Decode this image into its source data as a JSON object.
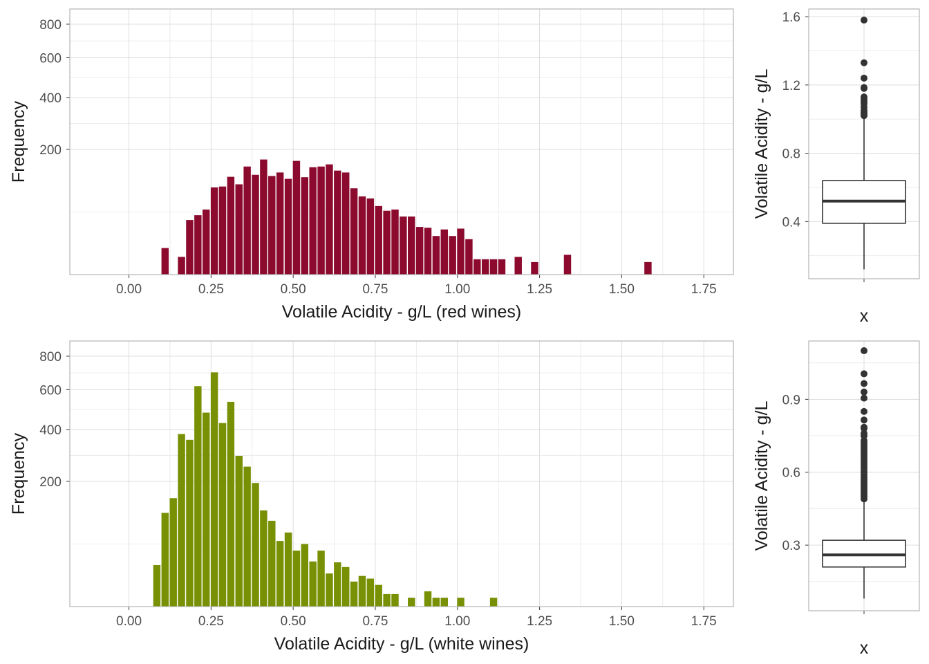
{
  "colors": {
    "red_bar": "#8b0a2e",
    "white_bar": "#789104",
    "box": "#333333",
    "grid_major": "#dcdcdc",
    "grid_minor": "#ececec",
    "panel_border": "#b3b3b3",
    "tick_text": "#4d4d4d",
    "title_text": "#1a1a1a"
  },
  "chart_data": [
    {
      "type": "bar",
      "id": "red-histogram",
      "title": "",
      "xlabel": "Volatile Acidity - g/L (red wines)",
      "ylabel": "Frequency",
      "xlim": [
        -0.18,
        1.84
      ],
      "ylim": [
        0,
        900
      ],
      "yscale": "sqrt",
      "xticks": [
        0.0,
        0.25,
        0.5,
        0.75,
        1.0,
        1.25,
        1.5,
        1.75
      ],
      "xtick_labels": [
        "0.00",
        "0.25",
        "0.50",
        "0.75",
        "1.00",
        "1.25",
        "1.50",
        "1.75"
      ],
      "yticks": [
        200,
        400,
        600,
        800
      ],
      "ytick_labels": [
        "200",
        "400",
        "600",
        "800"
      ],
      "bin_width": 0.025,
      "grid": true,
      "x": [
        0.11,
        0.16,
        0.185,
        0.21,
        0.235,
        0.26,
        0.285,
        0.31,
        0.335,
        0.36,
        0.385,
        0.41,
        0.435,
        0.46,
        0.485,
        0.51,
        0.535,
        0.56,
        0.585,
        0.61,
        0.635,
        0.66,
        0.685,
        0.71,
        0.735,
        0.76,
        0.785,
        0.81,
        0.835,
        0.86,
        0.885,
        0.91,
        0.935,
        0.96,
        0.985,
        1.01,
        1.035,
        1.06,
        1.085,
        1.11,
        1.135,
        1.185,
        1.235,
        1.335,
        1.58
      ],
      "values": [
        9,
        4,
        38,
        45,
        54,
        97,
        99,
        122,
        104,
        149,
        127,
        169,
        124,
        133,
        117,
        165,
        121,
        147,
        149,
        155,
        138,
        133,
        95,
        78,
        74,
        60,
        52,
        54,
        43,
        43,
        29,
        28,
        19,
        26,
        19,
        27,
        16,
        3,
        3,
        3,
        3,
        4,
        2,
        5,
        2
      ]
    },
    {
      "type": "box",
      "id": "red-boxplot",
      "xlabel": "x",
      "ylabel": "Volatile Acidity - g/L",
      "ylim": [
        0.065,
        1.645
      ],
      "yticks": [
        0.4,
        0.8,
        1.2,
        1.6
      ],
      "ytick_labels": [
        "0.4",
        "0.8",
        "1.2",
        "1.6"
      ],
      "grid": true,
      "min": 0.12,
      "q1": 0.39,
      "median": 0.52,
      "q3": 0.64,
      "whisker_high": 1.015,
      "outliers": [
        1.02,
        1.025,
        1.035,
        1.04,
        1.05,
        1.07,
        1.09,
        1.1,
        1.115,
        1.13,
        1.18,
        1.185,
        1.24,
        1.33,
        1.58
      ]
    },
    {
      "type": "bar",
      "id": "white-histogram",
      "title": "",
      "xlabel": "Volatile Acidity - g/L (white wines)",
      "ylabel": "Frequency",
      "xlim": [
        -0.18,
        1.84
      ],
      "ylim": [
        0,
        900
      ],
      "yscale": "sqrt",
      "xticks": [
        0.0,
        0.25,
        0.5,
        0.75,
        1.0,
        1.25,
        1.5,
        1.75
      ],
      "xtick_labels": [
        "0.00",
        "0.25",
        "0.50",
        "0.75",
        "1.00",
        "1.25",
        "1.50",
        "1.75"
      ],
      "yticks": [
        200,
        400,
        600,
        800
      ],
      "ytick_labels": [
        "200",
        "400",
        "600",
        "800"
      ],
      "bin_width": 0.025,
      "grid": true,
      "x": [
        0.085,
        0.11,
        0.135,
        0.16,
        0.185,
        0.21,
        0.235,
        0.26,
        0.285,
        0.31,
        0.335,
        0.36,
        0.385,
        0.41,
        0.435,
        0.46,
        0.485,
        0.51,
        0.535,
        0.56,
        0.585,
        0.61,
        0.635,
        0.66,
        0.685,
        0.71,
        0.735,
        0.76,
        0.785,
        0.81,
        0.86,
        0.91,
        0.935,
        0.96,
        1.01,
        1.11
      ],
      "values": [
        22,
        112,
        150,
        380,
        355,
        620,
        480,
        700,
        430,
        535,
        290,
        250,
        195,
        118,
        94,
        55,
        70,
        40,
        50,
        26,
        40,
        14,
        25,
        20,
        8,
        12,
        10,
        6,
        2,
        2,
        1,
        3,
        1,
        1,
        1,
        1
      ]
    },
    {
      "type": "box",
      "id": "white-boxplot",
      "xlabel": "x",
      "ylabel": "Volatile Acidity - g/L",
      "ylim": [
        0.03,
        1.14
      ],
      "yticks": [
        0.3,
        0.6,
        0.9
      ],
      "ytick_labels": [
        "0.3",
        "0.6",
        "0.9"
      ],
      "grid": true,
      "min": 0.08,
      "q1": 0.21,
      "median": 0.26,
      "q3": 0.32,
      "whisker_high": 0.485,
      "outliers": [
        0.49,
        0.5,
        0.51,
        0.52,
        0.53,
        0.54,
        0.55,
        0.56,
        0.57,
        0.58,
        0.59,
        0.6,
        0.61,
        0.62,
        0.63,
        0.64,
        0.65,
        0.66,
        0.67,
        0.68,
        0.69,
        0.7,
        0.71,
        0.72,
        0.73,
        0.75,
        0.76,
        0.78,
        0.785,
        0.815,
        0.85,
        0.905,
        0.93,
        0.965,
        1.005,
        1.1
      ]
    }
  ]
}
